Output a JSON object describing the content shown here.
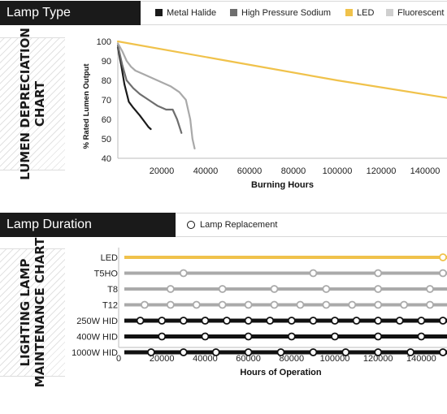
{
  "lamp_type": {
    "title": "Lamp Type",
    "legend": [
      {
        "label": "Metal Halide",
        "color": "#1a1a1a"
      },
      {
        "label": "High Pressure Sodium",
        "color": "#6e6e6e"
      },
      {
        "label": "LED",
        "color": "#f0c24b"
      },
      {
        "label": "Fluorescent",
        "color": "#cfcfcf"
      }
    ],
    "side_label": [
      "LUMEN DEPRECIATION",
      "CHART"
    ]
  },
  "lamp_duration": {
    "title": "Lamp Duration",
    "legend_label": "Lamp Replacement",
    "side_label": [
      "LIGHTING LAMP",
      "MAINTENANCE CHART"
    ]
  },
  "colors": {
    "metal_halide": "#1a1a1a",
    "hps": "#6e6e6e",
    "led": "#f0c24b",
    "fluorescent": "#a9a9a9",
    "hid_rows": "#111111",
    "fluorescent_rows": "#aaaaaa"
  },
  "chart_data": [
    {
      "type": "line",
      "title": "",
      "xlabel": "Burning Hours",
      "ylabel": "% Rated Lumen Output",
      "xlim": [
        0,
        150000
      ],
      "ylim": [
        40,
        100
      ],
      "xticks": [
        20000,
        40000,
        60000,
        80000,
        100000,
        120000,
        140000
      ],
      "yticks": [
        40,
        50,
        60,
        70,
        80,
        90,
        100
      ],
      "grid": false,
      "series": [
        {
          "name": "Metal Halide",
          "color": "#1a1a1a",
          "x": [
            0,
            1500,
            3000,
            5000,
            7000,
            10000,
            12000,
            14000,
            15000
          ],
          "y": [
            97,
            88,
            78,
            69,
            66,
            62,
            59,
            56,
            55
          ]
        },
        {
          "name": "High Pressure Sodium",
          "color": "#6e6e6e",
          "x": [
            0,
            2000,
            4000,
            7000,
            10000,
            14000,
            18000,
            22000,
            25000,
            27000,
            29000
          ],
          "y": [
            98,
            88,
            80,
            76,
            73,
            70,
            67,
            65,
            65,
            60,
            53
          ]
        },
        {
          "name": "Fluorescent",
          "color": "#a9a9a9",
          "x": [
            0,
            2000,
            4000,
            6000,
            8000,
            12000,
            18000,
            24000,
            28000,
            31000,
            33000,
            34000,
            35000
          ],
          "y": [
            99,
            95,
            90,
            87,
            85,
            83,
            80,
            77,
            74,
            70,
            60,
            50,
            45
          ]
        },
        {
          "name": "LED",
          "color": "#f0c24b",
          "x": [
            0,
            50000,
            100000,
            150000
          ],
          "y": [
            100,
            90,
            80,
            71
          ]
        }
      ]
    },
    {
      "type": "scatter",
      "title": "",
      "xlabel": "Hours of Operation",
      "ylabel": "",
      "xlim": [
        0,
        150000
      ],
      "xticks": [
        0,
        20000,
        40000,
        60000,
        80000,
        100000,
        120000,
        140000
      ],
      "rows": [
        {
          "name": "LED",
          "style": "led",
          "replacements": [
            150000
          ]
        },
        {
          "name": "T5HO",
          "style": "fluorescent",
          "replacements": [
            30000,
            90000,
            120000,
            150000
          ]
        },
        {
          "name": "T8",
          "style": "fluorescent",
          "replacements": [
            24000,
            48000,
            72000,
            96000,
            120000,
            144000
          ]
        },
        {
          "name": "T12",
          "style": "fluorescent",
          "replacements": [
            12000,
            24000,
            36000,
            48000,
            60000,
            72000,
            84000,
            96000,
            108000,
            120000,
            132000,
            144000
          ]
        },
        {
          "name": "250W HID",
          "style": "hid",
          "replacements": [
            10000,
            20000,
            30000,
            40000,
            50000,
            60000,
            70000,
            80000,
            90000,
            100000,
            110000,
            120000,
            130000,
            140000,
            150000
          ]
        },
        {
          "name": "400W HID",
          "style": "hid",
          "replacements": [
            20000,
            40000,
            60000,
            80000,
            100000,
            120000,
            140000
          ]
        },
        {
          "name": "1000W HID",
          "style": "hid",
          "replacements": [
            15000,
            30000,
            45000,
            60000,
            75000,
            90000,
            105000,
            120000,
            135000,
            150000
          ]
        }
      ]
    }
  ]
}
